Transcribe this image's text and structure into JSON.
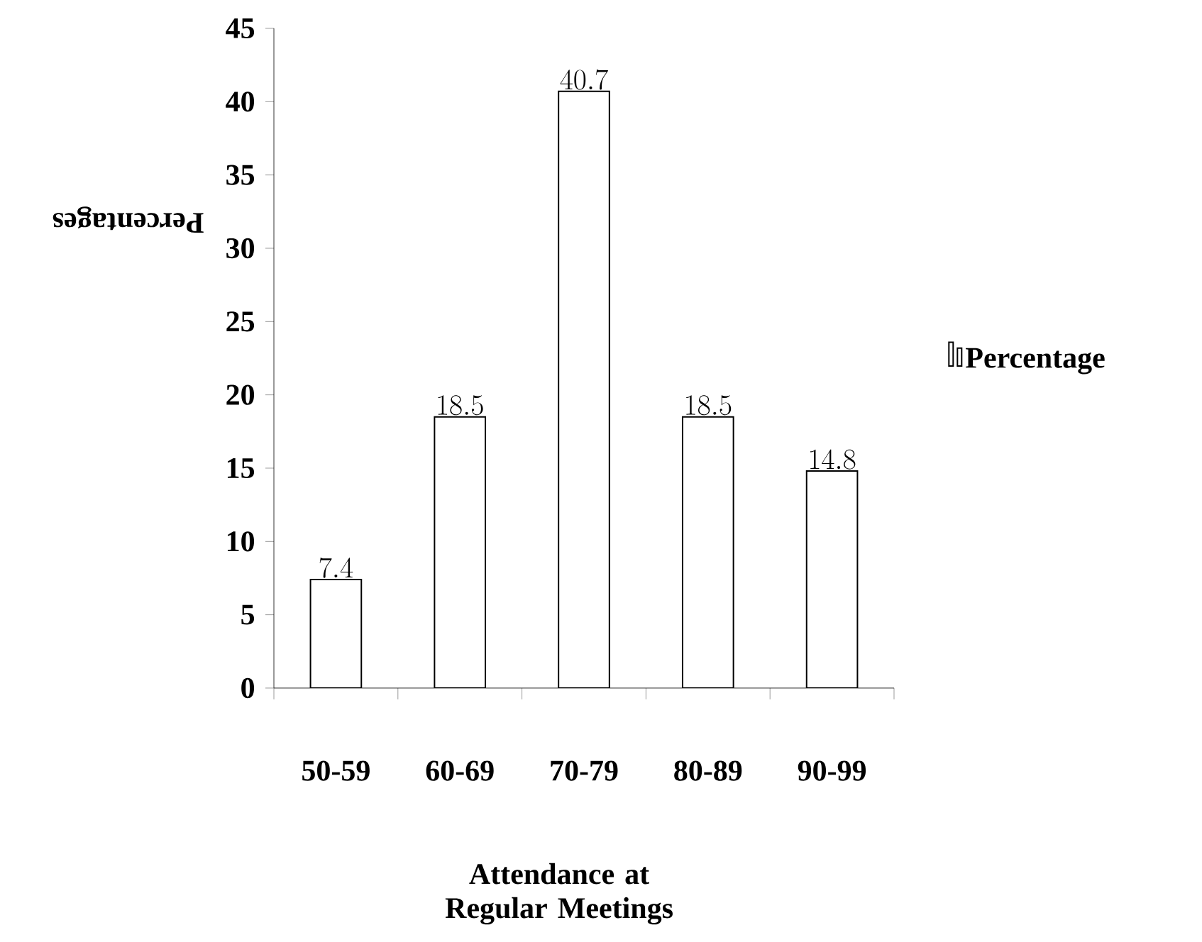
{
  "chart_data": {
    "type": "bar",
    "xlabel": "Attendance at Regular Meetings",
    "ylabel": "Percentages",
    "categories": [
      "50-59",
      "60-69",
      "70-79",
      "80-89",
      "90-99"
    ],
    "series": [
      {
        "name": "Percentage",
        "color": "#ffffff",
        "values": [
          7.4,
          18.5,
          40.7,
          18.5,
          14.8
        ]
      }
    ],
    "ylim": [
      0,
      45
    ],
    "yticks": [
      0,
      5,
      10,
      15,
      20,
      25,
      30,
      35,
      40,
      45
    ],
    "data_labels": true,
    "legend": "right",
    "grid": false
  }
}
